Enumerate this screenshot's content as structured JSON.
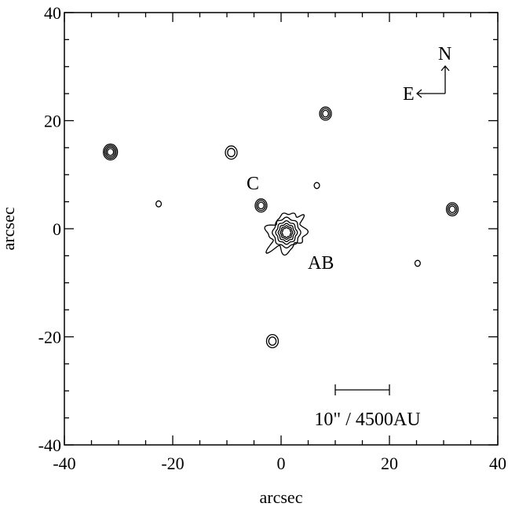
{
  "chart_data": {
    "type": "contour",
    "xlabel": "arcsec",
    "ylabel": "arcsec",
    "xlim": [
      -40,
      40
    ],
    "ylim": [
      -40,
      40
    ],
    "xticks": [
      -40,
      -20,
      0,
      20,
      40
    ],
    "yticks": [
      -40,
      -20,
      0,
      20,
      40
    ],
    "grid": false,
    "sources": [
      {
        "x": 1.0,
        "y": -0.7,
        "levels": 6,
        "label": "AB",
        "extended": true
      },
      {
        "x": -3.7,
        "y": 4.3,
        "levels": 3,
        "label": "C"
      },
      {
        "x": 8.2,
        "y": 21.3,
        "levels": 3
      },
      {
        "x": -31.5,
        "y": 14.2,
        "levels": 4
      },
      {
        "x": -9.2,
        "y": 14.1,
        "levels": 2
      },
      {
        "x": -22.6,
        "y": 4.6,
        "levels": 1
      },
      {
        "x": 6.6,
        "y": 8.0,
        "levels": 1
      },
      {
        "x": 31.6,
        "y": 3.6,
        "levels": 3
      },
      {
        "x": 25.2,
        "y": -6.4,
        "levels": 1
      },
      {
        "x": -1.6,
        "y": -20.8,
        "levels": 2
      }
    ],
    "annotations": {
      "label_C": "C",
      "label_AB": "AB",
      "compass_north": "N",
      "compass_east": "E",
      "scalebar_text": "10\" / 4500AU",
      "scalebar_from": 10,
      "scalebar_to": 20
    }
  }
}
